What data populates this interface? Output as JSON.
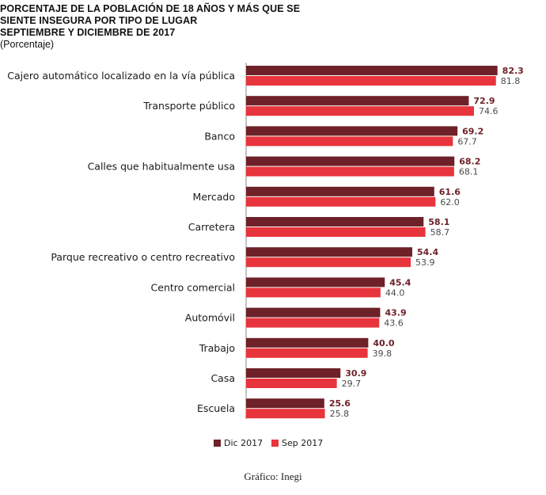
{
  "title_lines": [
    "PORCENTAJE DE LA POBLACIÓN DE 18 AÑOS Y MÁS QUE SE",
    "SIENTE INSEGURA POR TIPO DE LUGAR",
    "SEPTIEMBRE Y DICIEMBRE DE 2017"
  ],
  "subtitle": "(Porcentaje)",
  "caption": "Gráfico: Inegi",
  "colors": {
    "dic": "#6e2128",
    "sep": "#e8343c"
  },
  "chart_data": {
    "type": "bar",
    "orientation": "horizontal",
    "title": "PORCENTAJE DE LA POBLACIÓN DE 18 AÑOS Y MÁS QUE SE SIENTE INSEGURA POR TIPO DE LUGAR SEPTIEMBRE Y DICIEMBRE DE 2017",
    "subtitle": "(Porcentaje)",
    "xlim": [
      0,
      90
    ],
    "grid": false,
    "legend_position": "bottom",
    "categories": [
      "Cajero automático localizado en la vía pública",
      "Transporte público",
      "Banco",
      "Calles que habitualmente usa",
      "Mercado",
      "Carretera",
      "Parque recreativo o centro recreativo",
      "Centro comercial",
      "Automóvil",
      "Trabajo",
      "Casa",
      "Escuela"
    ],
    "series": [
      {
        "name": "Dic 2017",
        "values": [
          "82.3",
          "72.9",
          "69.2",
          "68.2",
          "61.6",
          "58.1",
          "54.4",
          "45.4",
          "43.9",
          "40.0",
          "30.9",
          "25.6"
        ]
      },
      {
        "name": "Sep 2017",
        "values": [
          "81.8",
          "74.6",
          "67.7",
          "68.1",
          "62.0",
          "58.7",
          "53.9",
          "44.0",
          "43.6",
          "39.8",
          "29.7",
          "25.8"
        ]
      }
    ]
  }
}
